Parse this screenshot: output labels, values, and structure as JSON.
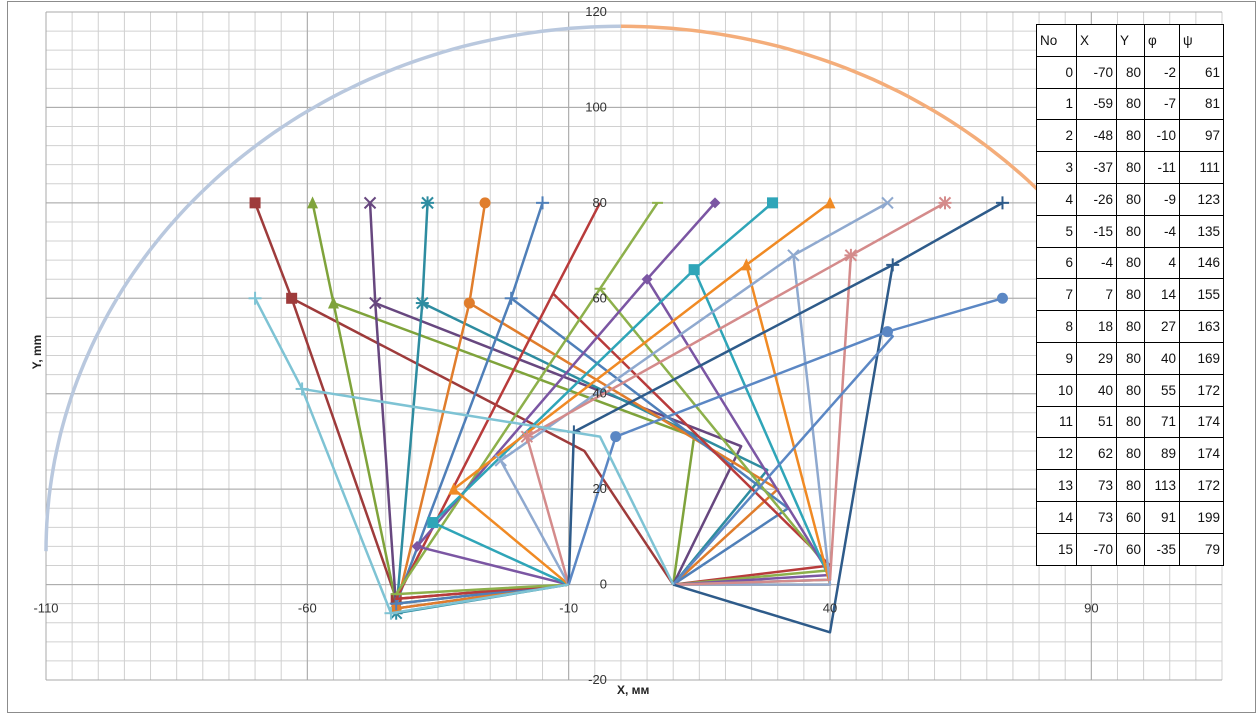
{
  "chart_data": {
    "type": "line",
    "xlabel": "X, мм",
    "ylabel": "Y, mm",
    "xlim": [
      -110,
      115
    ],
    "ylim": [
      -20,
      120
    ],
    "x_ticks": [
      "-110",
      "-60",
      "-10",
      "40",
      "90"
    ],
    "y_ticks": [
      "120",
      "100",
      "80",
      "60",
      "40",
      "20",
      "0",
      "-20"
    ],
    "grid": true,
    "reach_arc": {
      "radius": 110,
      "center": [
        0,
        0
      ],
      "colors": [
        "#b9c8de",
        "#f4ad7a"
      ]
    },
    "base_points": [
      [
        -10,
        0
      ],
      [
        10,
        0
      ]
    ],
    "series": [
      {
        "color": "#9e3b3b",
        "marker": "square",
        "points": [
          [
            -10,
            0
          ],
          [
            -63,
            60
          ],
          [
            -70,
            80
          ]
        ],
        "right": [
          [
            10,
            0
          ],
          [
            40,
            5
          ],
          [
            -63,
            60
          ]
        ]
      },
      {
        "color": "#7fa33b",
        "marker": "triangle",
        "points": [
          [
            -10,
            0
          ],
          [
            -55,
            59
          ],
          [
            -59,
            80
          ]
        ],
        "right": [
          [
            10,
            0
          ],
          [
            40,
            5
          ],
          [
            -55,
            59
          ]
        ]
      },
      {
        "color": "#67477f",
        "marker": "x",
        "points": [
          [
            -10,
            0
          ],
          [
            -47,
            59
          ],
          [
            -48,
            80
          ]
        ],
        "right": [
          [
            10,
            0
          ],
          [
            40,
            6
          ],
          [
            -47,
            59
          ]
        ]
      },
      {
        "color": "#2e8ca0",
        "marker": "star",
        "points": [
          [
            -10,
            0
          ],
          [
            -38,
            59
          ],
          [
            -37,
            80
          ]
        ],
        "right": [
          [
            10,
            0
          ],
          [
            40,
            7
          ],
          [
            -38,
            59
          ]
        ]
      },
      {
        "color": "#e07d2c",
        "marker": "circle",
        "points": [
          [
            -10,
            0
          ],
          [
            -29,
            59
          ],
          [
            -26,
            80
          ]
        ],
        "right": [
          [
            10,
            0
          ],
          [
            40,
            9
          ],
          [
            -29,
            59
          ]
        ]
      },
      {
        "color": "#4f7fb8",
        "marker": "plus",
        "points": [
          [
            -10,
            0
          ],
          [
            -21,
            60
          ],
          [
            -15,
            80
          ]
        ],
        "right": [
          [
            10,
            0
          ],
          [
            40,
            11
          ],
          [
            -21,
            60
          ]
        ]
      },
      {
        "color": "#b83b3b",
        "marker": "none",
        "points": [
          [
            -10,
            0
          ],
          [
            -13,
            61
          ],
          [
            -4,
            80
          ]
        ],
        "right": [
          [
            10,
            0
          ],
          [
            40,
            13
          ],
          [
            -13,
            61
          ]
        ]
      },
      {
        "color": "#8db04b",
        "marker": "dash",
        "points": [
          [
            -10,
            0
          ],
          [
            -4,
            62
          ],
          [
            7,
            80
          ]
        ],
        "right": [
          [
            10,
            0
          ],
          [
            40,
            15
          ],
          [
            -4,
            62
          ]
        ]
      },
      {
        "color": "#7b56a3",
        "marker": "diamond",
        "points": [
          [
            -10,
            0
          ],
          [
            5,
            64
          ],
          [
            18,
            80
          ]
        ],
        "right": [
          [
            10,
            0
          ],
          [
            40,
            17
          ],
          [
            5,
            64
          ]
        ]
      },
      {
        "color": "#2fa5b8",
        "marker": "square",
        "points": [
          [
            -10,
            0
          ],
          [
            14,
            66
          ],
          [
            29,
            80
          ]
        ],
        "right": [
          [
            10,
            0
          ],
          [
            40,
            19
          ],
          [
            14,
            66
          ]
        ]
      },
      {
        "color": "#f08a24",
        "marker": "triangle",
        "points": [
          [
            -10,
            0
          ],
          [
            24,
            67
          ],
          [
            40,
            80
          ]
        ],
        "right": [
          [
            10,
            0
          ],
          [
            40,
            21
          ],
          [
            24,
            67
          ]
        ]
      },
      {
        "color": "#8fa9cf",
        "marker": "x",
        "points": [
          [
            -10,
            0
          ],
          [
            33,
            69
          ],
          [
            51,
            80
          ]
        ],
        "right": [
          [
            10,
            0
          ],
          [
            40,
            23
          ],
          [
            33,
            69
          ]
        ]
      },
      {
        "color": "#d48b8b",
        "marker": "star",
        "points": [
          [
            -10,
            0
          ],
          [
            44,
            69
          ],
          [
            62,
            80
          ]
        ],
        "right": [
          [
            10,
            0
          ],
          [
            40,
            25
          ],
          [
            44,
            69
          ]
        ]
      },
      {
        "color": "#2e5b8a",
        "marker": "plus",
        "points": [
          [
            -10,
            0
          ],
          [
            52,
            67
          ],
          [
            73,
            80
          ]
        ],
        "right": [
          [
            10,
            0
          ],
          [
            40,
            27
          ],
          [
            52,
            67
          ]
        ]
      },
      {
        "color": "#5b87c4",
        "marker": "circle",
        "points": [
          [
            -10,
            0
          ],
          [
            51,
            53
          ],
          [
            73,
            60
          ]
        ],
        "right": [
          [
            10,
            0
          ],
          [
            40,
            29
          ],
          [
            51,
            53
          ]
        ]
      },
      {
        "color": "#7ec3d4",
        "marker": "plus",
        "points": [
          [
            -10,
            0
          ],
          [
            -61,
            41
          ],
          [
            -70,
            60
          ]
        ],
        "right": [
          [
            10,
            0
          ],
          [
            40,
            31
          ],
          [
            -61,
            41
          ]
        ]
      }
    ],
    "left_arm_elbows": [
      [
        -43,
        -3
      ],
      [
        -43,
        -4
      ],
      [
        -43,
        -5
      ],
      [
        -43,
        -6
      ],
      [
        -43,
        -5
      ],
      [
        -43,
        -4
      ],
      [
        -43,
        -3
      ],
      [
        -43,
        -2
      ],
      [
        -39,
        8
      ],
      [
        -36,
        13
      ],
      [
        -32,
        20
      ],
      [
        -23,
        26
      ],
      [
        -18,
        31
      ],
      [
        -9,
        32
      ],
      [
        -1,
        31
      ],
      [
        -44,
        -6
      ]
    ],
    "right_arm_elbows": [
      [
        -7,
        28
      ],
      [
        14,
        31
      ],
      [
        23,
        29
      ],
      [
        28,
        24
      ],
      [
        30,
        20
      ],
      [
        32,
        16
      ],
      [
        40,
        4
      ],
      [
        40,
        3
      ],
      [
        40,
        2
      ],
      [
        40,
        1
      ],
      [
        40,
        0
      ],
      [
        40,
        0
      ],
      [
        40,
        1
      ],
      [
        40,
        -10
      ],
      [
        52,
        52
      ],
      [
        -4,
        31
      ]
    ],
    "table": {
      "headers": [
        "No",
        "X",
        "Y",
        "φ",
        "ψ"
      ],
      "rows": [
        [
          "0",
          "-70",
          "80",
          "-2",
          "61"
        ],
        [
          "1",
          "-59",
          "80",
          "-7",
          "81"
        ],
        [
          "2",
          "-48",
          "80",
          "-10",
          "97"
        ],
        [
          "3",
          "-37",
          "80",
          "-11",
          "111"
        ],
        [
          "4",
          "-26",
          "80",
          "-9",
          "123"
        ],
        [
          "5",
          "-15",
          "80",
          "-4",
          "135"
        ],
        [
          "6",
          "-4",
          "80",
          "4",
          "146"
        ],
        [
          "7",
          "7",
          "80",
          "14",
          "155"
        ],
        [
          "8",
          "18",
          "80",
          "27",
          "163"
        ],
        [
          "9",
          "29",
          "80",
          "40",
          "169"
        ],
        [
          "10",
          "40",
          "80",
          "55",
          "172"
        ],
        [
          "11",
          "51",
          "80",
          "71",
          "174"
        ],
        [
          "12",
          "62",
          "80",
          "89",
          "174"
        ],
        [
          "13",
          "73",
          "80",
          "113",
          "172"
        ],
        [
          "14",
          "73",
          "60",
          "91",
          "199"
        ],
        [
          "15",
          "-70",
          "60",
          "-35",
          "79"
        ]
      ]
    }
  }
}
